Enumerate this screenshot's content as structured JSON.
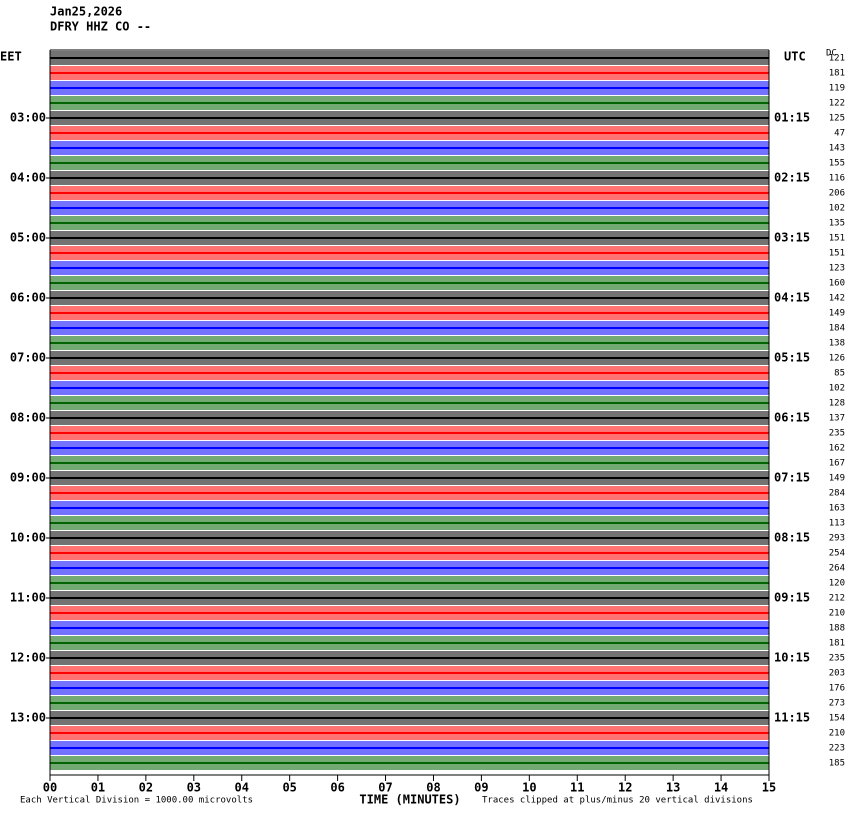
{
  "chart_data": {
    "type": "helicorder",
    "title": "Jan25,2026",
    "subtitle": "DFRY HHZ CO --",
    "left_zone": "EET",
    "right_zone": "UTC",
    "dc_header": "DC",
    "x_label": "TIME (MINUTES)",
    "scale_note": "Each Vertical Division = 1000.00 microvolts",
    "clip_note": "Traces clipped at plus/minus 20 vertical divisions",
    "left_labels": [
      "03:00",
      "04:00",
      "05:00",
      "06:00",
      "07:00",
      "08:00",
      "09:00",
      "10:00",
      "11:00",
      "12:00",
      "13:00"
    ],
    "right_labels": [
      "01:15",
      "02:15",
      "03:15",
      "04:15",
      "05:15",
      "06:15",
      "07:15",
      "08:15",
      "09:15",
      "10:15",
      "11:15"
    ],
    "dc_offsets": [
      121,
      181,
      119,
      122,
      125,
      47,
      143,
      155,
      116,
      206,
      102,
      135,
      151,
      151,
      123,
      160,
      142,
      149,
      184,
      138,
      126,
      85,
      102,
      128,
      137,
      235,
      162,
      167,
      149,
      284,
      163,
      113,
      293,
      254,
      264,
      120,
      212,
      210,
      188,
      181,
      235,
      203,
      176,
      273,
      154,
      210,
      223,
      185
    ],
    "trace_colors": [
      "#000000",
      "#ff0000",
      "#0000ff",
      "#006400"
    ],
    "xlim": [
      0,
      15
    ],
    "xticks": [
      {
        "value": 0,
        "label": "00"
      },
      {
        "value": 1,
        "label": "01"
      },
      {
        "value": 2,
        "label": "02"
      },
      {
        "value": 3,
        "label": "03"
      },
      {
        "value": 4,
        "label": "04"
      },
      {
        "value": 5,
        "label": "05"
      },
      {
        "value": 6,
        "label": "06"
      },
      {
        "value": 7,
        "label": "07"
      },
      {
        "value": 8,
        "label": "08"
      },
      {
        "value": 9,
        "label": "09"
      },
      10,
      11,
      12,
      13,
      14,
      15
    ]
  }
}
